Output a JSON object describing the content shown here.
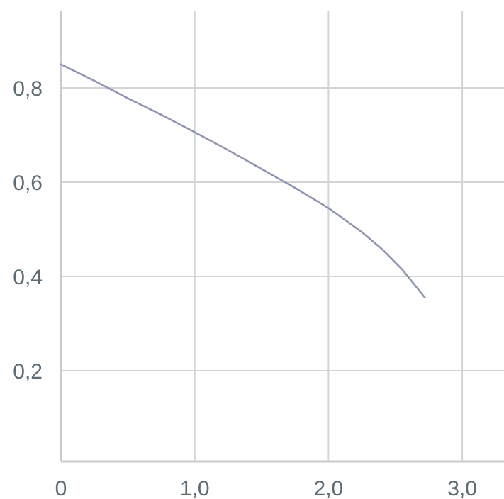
{
  "chart_data": {
    "type": "line",
    "title": "",
    "xlabel": "",
    "ylabel": "",
    "xlim": [
      0,
      3.3
    ],
    "ylim": [
      0,
      0.95
    ],
    "grid": true,
    "x_ticks": [
      {
        "value": 0,
        "label": "0"
      },
      {
        "value": 1.0,
        "label": "1,0"
      },
      {
        "value": 2.0,
        "label": "2,0"
      },
      {
        "value": 3.0,
        "label": "3,0"
      }
    ],
    "y_ticks": [
      {
        "value": 0.2,
        "label": "0,2"
      },
      {
        "value": 0.4,
        "label": "0,4"
      },
      {
        "value": 0.6,
        "label": "0,6"
      },
      {
        "value": 0.8,
        "label": "0,8"
      }
    ],
    "series": [
      {
        "color": "#8d93b3",
        "x": [
          0,
          0.25,
          0.5,
          0.75,
          1.0,
          1.25,
          1.5,
          1.75,
          2.0,
          2.25,
          2.4,
          2.55,
          2.65,
          2.72
        ],
        "y": [
          0.85,
          0.815,
          0.778,
          0.743,
          0.706,
          0.668,
          0.628,
          0.588,
          0.545,
          0.494,
          0.458,
          0.415,
          0.38,
          0.355
        ]
      }
    ]
  }
}
